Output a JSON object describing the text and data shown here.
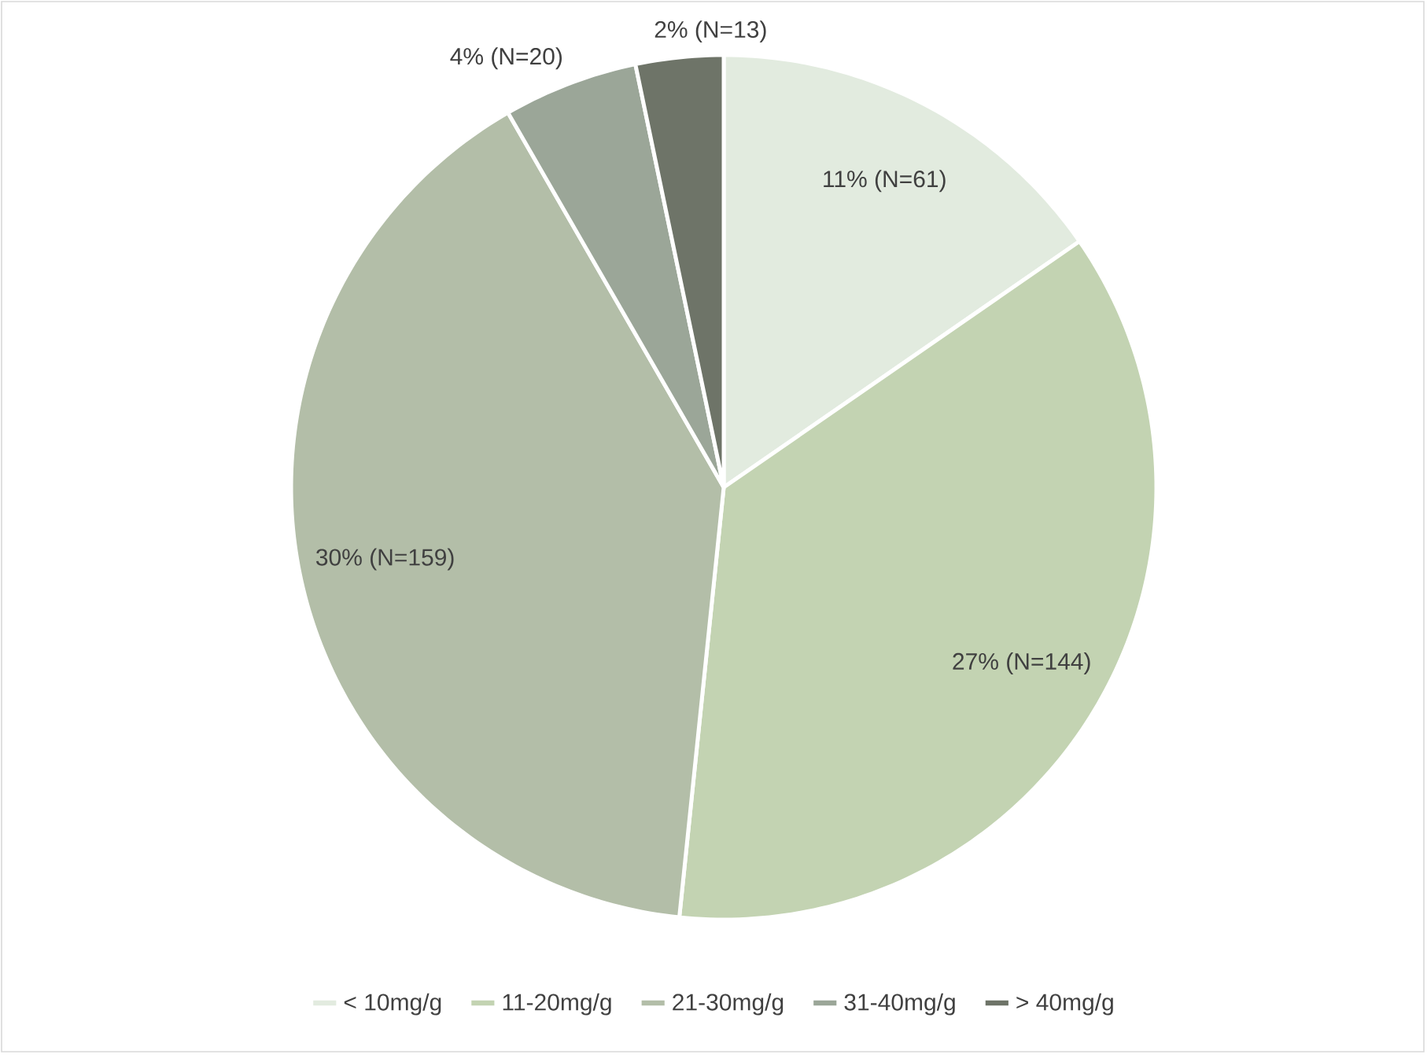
{
  "chart_data": {
    "type": "pie",
    "categories": [
      "< 10mg/g",
      "11-20mg/g",
      "21-30mg/g",
      "31-40mg/g",
      "> 40mg/g"
    ],
    "values": [
      61,
      144,
      159,
      20,
      13
    ],
    "value_labels": [
      "11% (N=61)",
      "27% (N=144)",
      "30% (N=159)",
      "4% (N=20)",
      "2% (N=13)"
    ],
    "colors": [
      "#e2ebdf",
      "#c3d3b2",
      "#b3bea8",
      "#9ba698",
      "#6e7468"
    ],
    "legend": "bottom"
  }
}
